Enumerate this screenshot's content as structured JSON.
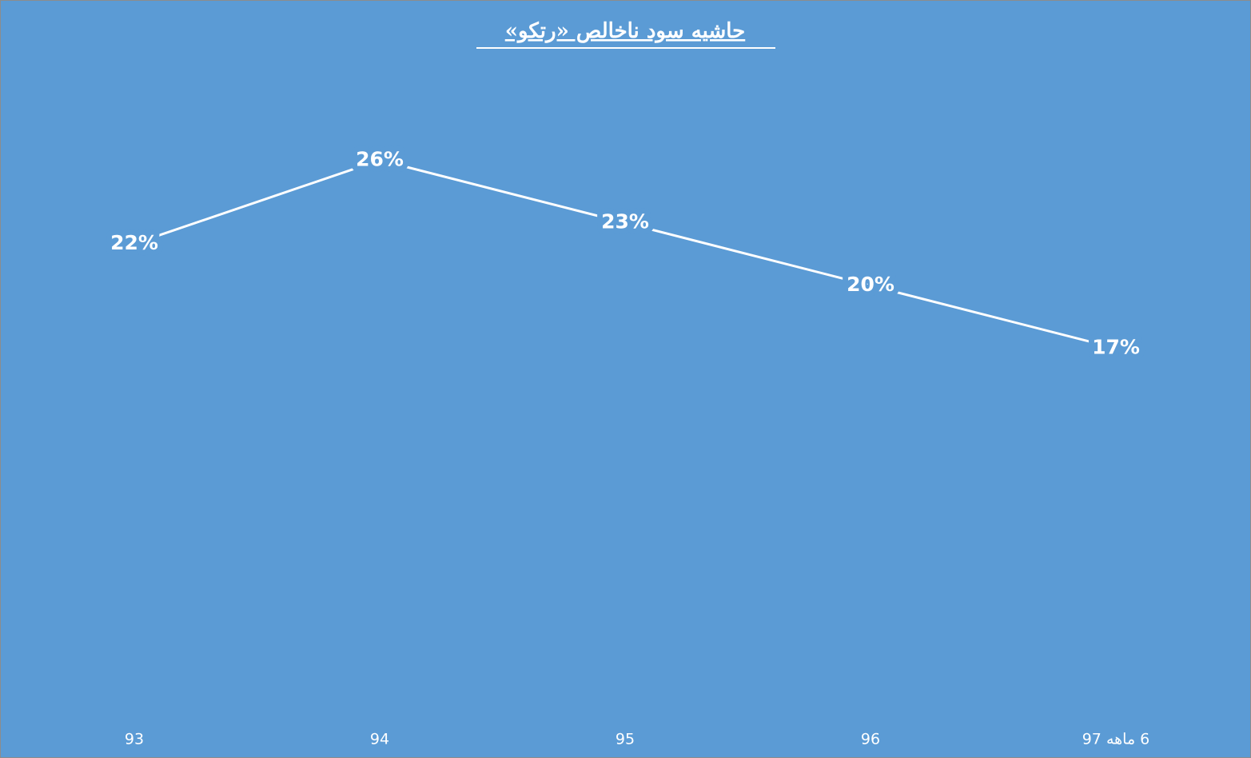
{
  "chart_data": {
    "type": "line",
    "title": "حاشیه سود ناخالص «رتکو»",
    "categories": [
      "93",
      "94",
      "95",
      "96",
      "6 ماهه 97"
    ],
    "values": [
      22,
      26,
      23,
      20,
      17
    ],
    "value_labels": [
      "22%",
      "26%",
      "23%",
      "20%",
      "17%"
    ],
    "color": "#ffffff",
    "background": "#5b9bd5",
    "ylim": [
      0,
      28
    ],
    "drop_lines": true
  }
}
